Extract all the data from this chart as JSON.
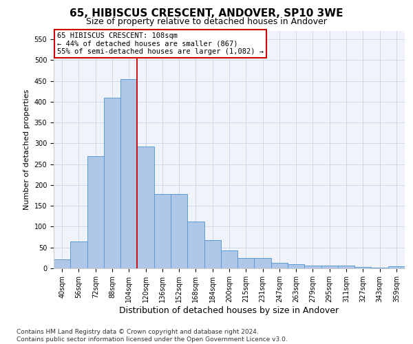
{
  "title": "65, HIBISCUS CRESCENT, ANDOVER, SP10 3WE",
  "subtitle": "Size of property relative to detached houses in Andover",
  "xlabel": "Distribution of detached houses by size in Andover",
  "ylabel": "Number of detached properties",
  "footnote": "Contains HM Land Registry data © Crown copyright and database right 2024.\nContains public sector information licensed under the Open Government Licence v3.0.",
  "categories": [
    "40sqm",
    "56sqm",
    "72sqm",
    "88sqm",
    "104sqm",
    "120sqm",
    "136sqm",
    "152sqm",
    "168sqm",
    "184sqm",
    "200sqm",
    "215sqm",
    "231sqm",
    "247sqm",
    "263sqm",
    "279sqm",
    "295sqm",
    "311sqm",
    "327sqm",
    "343sqm",
    "359sqm"
  ],
  "values": [
    22,
    65,
    270,
    410,
    455,
    293,
    178,
    178,
    113,
    68,
    43,
    25,
    25,
    14,
    10,
    6,
    6,
    6,
    3,
    2,
    5
  ],
  "bar_color": "#aec6e8",
  "bar_edge_color": "#5b9bd5",
  "highlight_index": 4,
  "highlight_color": "#cc0000",
  "ylim": [
    0,
    570
  ],
  "yticks": [
    0,
    50,
    100,
    150,
    200,
    250,
    300,
    350,
    400,
    450,
    500,
    550
  ],
  "annotation_text": "65 HIBISCUS CRESCENT: 108sqm\n← 44% of detached houses are smaller (867)\n55% of semi-detached houses are larger (1,082) →",
  "bg_color": "#f0f4fa",
  "grid_color": "#c8d4e8",
  "title_fontsize": 11,
  "subtitle_fontsize": 9,
  "tick_fontsize": 7,
  "ylabel_fontsize": 8,
  "xlabel_fontsize": 9,
  "footnote_fontsize": 6.5,
  "ann_fontsize": 7.5
}
